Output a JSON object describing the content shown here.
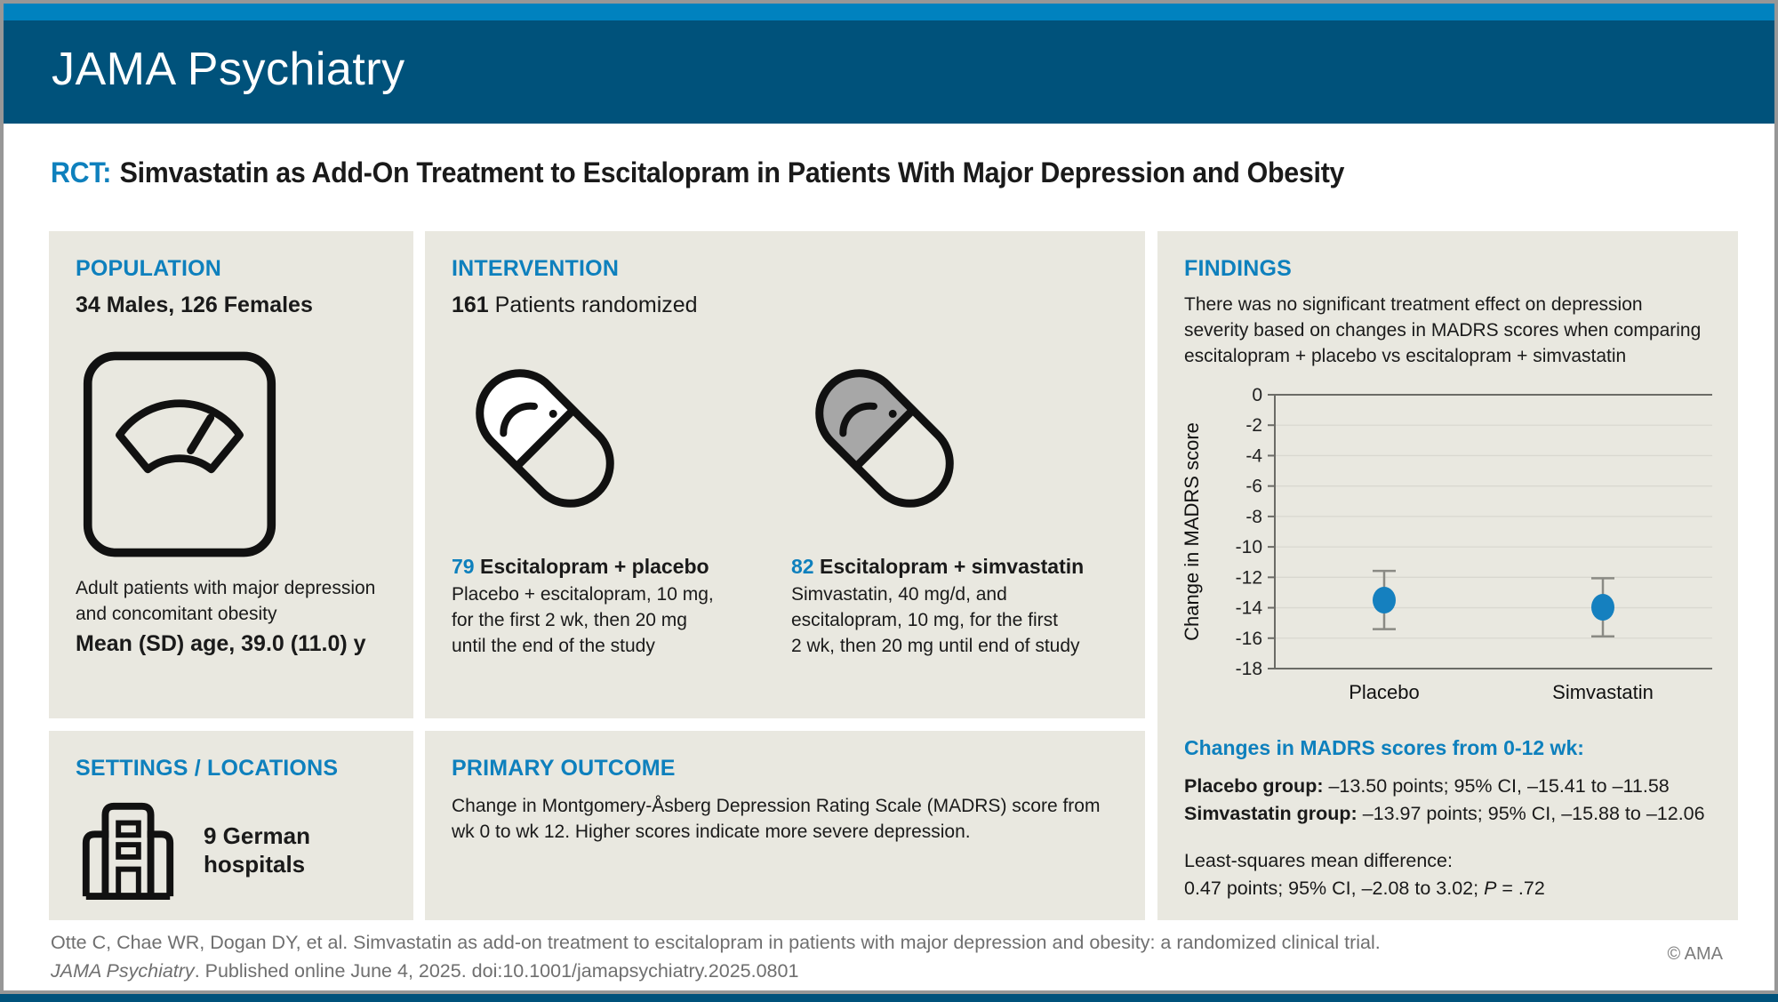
{
  "colors": {
    "accent_blue": "#0e80bd",
    "strip_blue": "#0082bf",
    "band_blue": "#00527b",
    "panel_bg": "#e9e8e0",
    "point_blue": "#1580bf",
    "error_gray": "#8a8a84",
    "grid_gray": "#d9d8d0",
    "axis_gray": "#6b6b66",
    "pill_gray": "#a7a7a7",
    "footer_gray": "#6f6f6f"
  },
  "header": {
    "journal": "JAMA Psychiatry"
  },
  "title": {
    "prefix": "RCT:",
    "text": "Simvastatin as Add-On Treatment to Escitalopram in Patients With Major Depression and Obesity"
  },
  "population": {
    "heading": "POPULATION",
    "sex_line": "34 Males, 126 Females",
    "icon": "weight-scale-icon",
    "description": "Adult patients with major depression\nand concomitant obesity",
    "age_line": "Mean (SD) age, 39.0 (11.0) y"
  },
  "settings": {
    "heading": "SETTINGS / LOCATIONS",
    "icon": "hospital-icon",
    "text": "9 German\nhospitals"
  },
  "intervention": {
    "heading": "INTERVENTION",
    "randomized_count": "161",
    "randomized_label": " Patients randomized",
    "groups": [
      {
        "count": "79",
        "name": " Escitalopram + placebo",
        "icon": "capsule-white-icon",
        "description": "Placebo + escitalopram, 10 mg,\nfor the first 2 wk, then 20 mg\nuntil the end of the study"
      },
      {
        "count": "82",
        "name": " Escitalopram + simvastatin",
        "icon": "capsule-gray-icon",
        "description": "Simvastatin, 40 mg/d, and\nescitalopram, 10 mg, for the first\n2 wk, then 20 mg until end of study"
      }
    ]
  },
  "primary_outcome": {
    "heading": "PRIMARY OUTCOME",
    "text": "Change in Montgomery-Åsberg Depression Rating Scale (MADRS) score from\nwk 0 to wk 12. Higher scores indicate more severe depression."
  },
  "findings": {
    "heading": "FINDINGS",
    "summary": "There was no significant treatment effect on depression\nseverity based on changes in MADRS scores when comparing\nescitalopram + placebo vs escitalopram + simvastatin",
    "changes_heading": "Changes in MADRS scores from 0-12 wk:",
    "placebo_label": "Placebo group:",
    "placebo_value": " –13.50 points; 95% CI, –15.41 to –11.58",
    "simvastatin_label": "Simvastatin group:",
    "simvastatin_value": " –13.97 points; 95% CI, –15.88 to –12.06",
    "lsmd_line1": "Least-squares mean difference:",
    "lsmd_line2_pre": "0.47 points; 95% CI, –2.08 to 3.02; ",
    "lsmd_p": "P",
    "lsmd_line2_post": " = .72"
  },
  "chart_data": {
    "type": "scatter",
    "title": "",
    "categories": [
      "Placebo",
      "Simvastatin"
    ],
    "values": [
      -13.5,
      -13.97
    ],
    "ci_low": [
      -15.41,
      -15.88
    ],
    "ci_high": [
      -11.58,
      -12.06
    ],
    "xlabel": "",
    "ylabel": "Change in MADRS score",
    "ylim": [
      -18,
      0
    ],
    "ytick_step": 2,
    "grid": true,
    "legend": "none"
  },
  "footer": {
    "citation_line1": "Otte C, Chae WR, Dogan DY, et al. Simvastatin as add-on treatment to escitalopram in patients with major depression and obesity: a randomized clinical trial.",
    "citation_line2_italic": "JAMA Psychiatry",
    "citation_line2_rest": ". Published online June 4, 2025. doi:10.1001/jamapsychiatry.2025.0801",
    "copyright": "© AMA"
  }
}
